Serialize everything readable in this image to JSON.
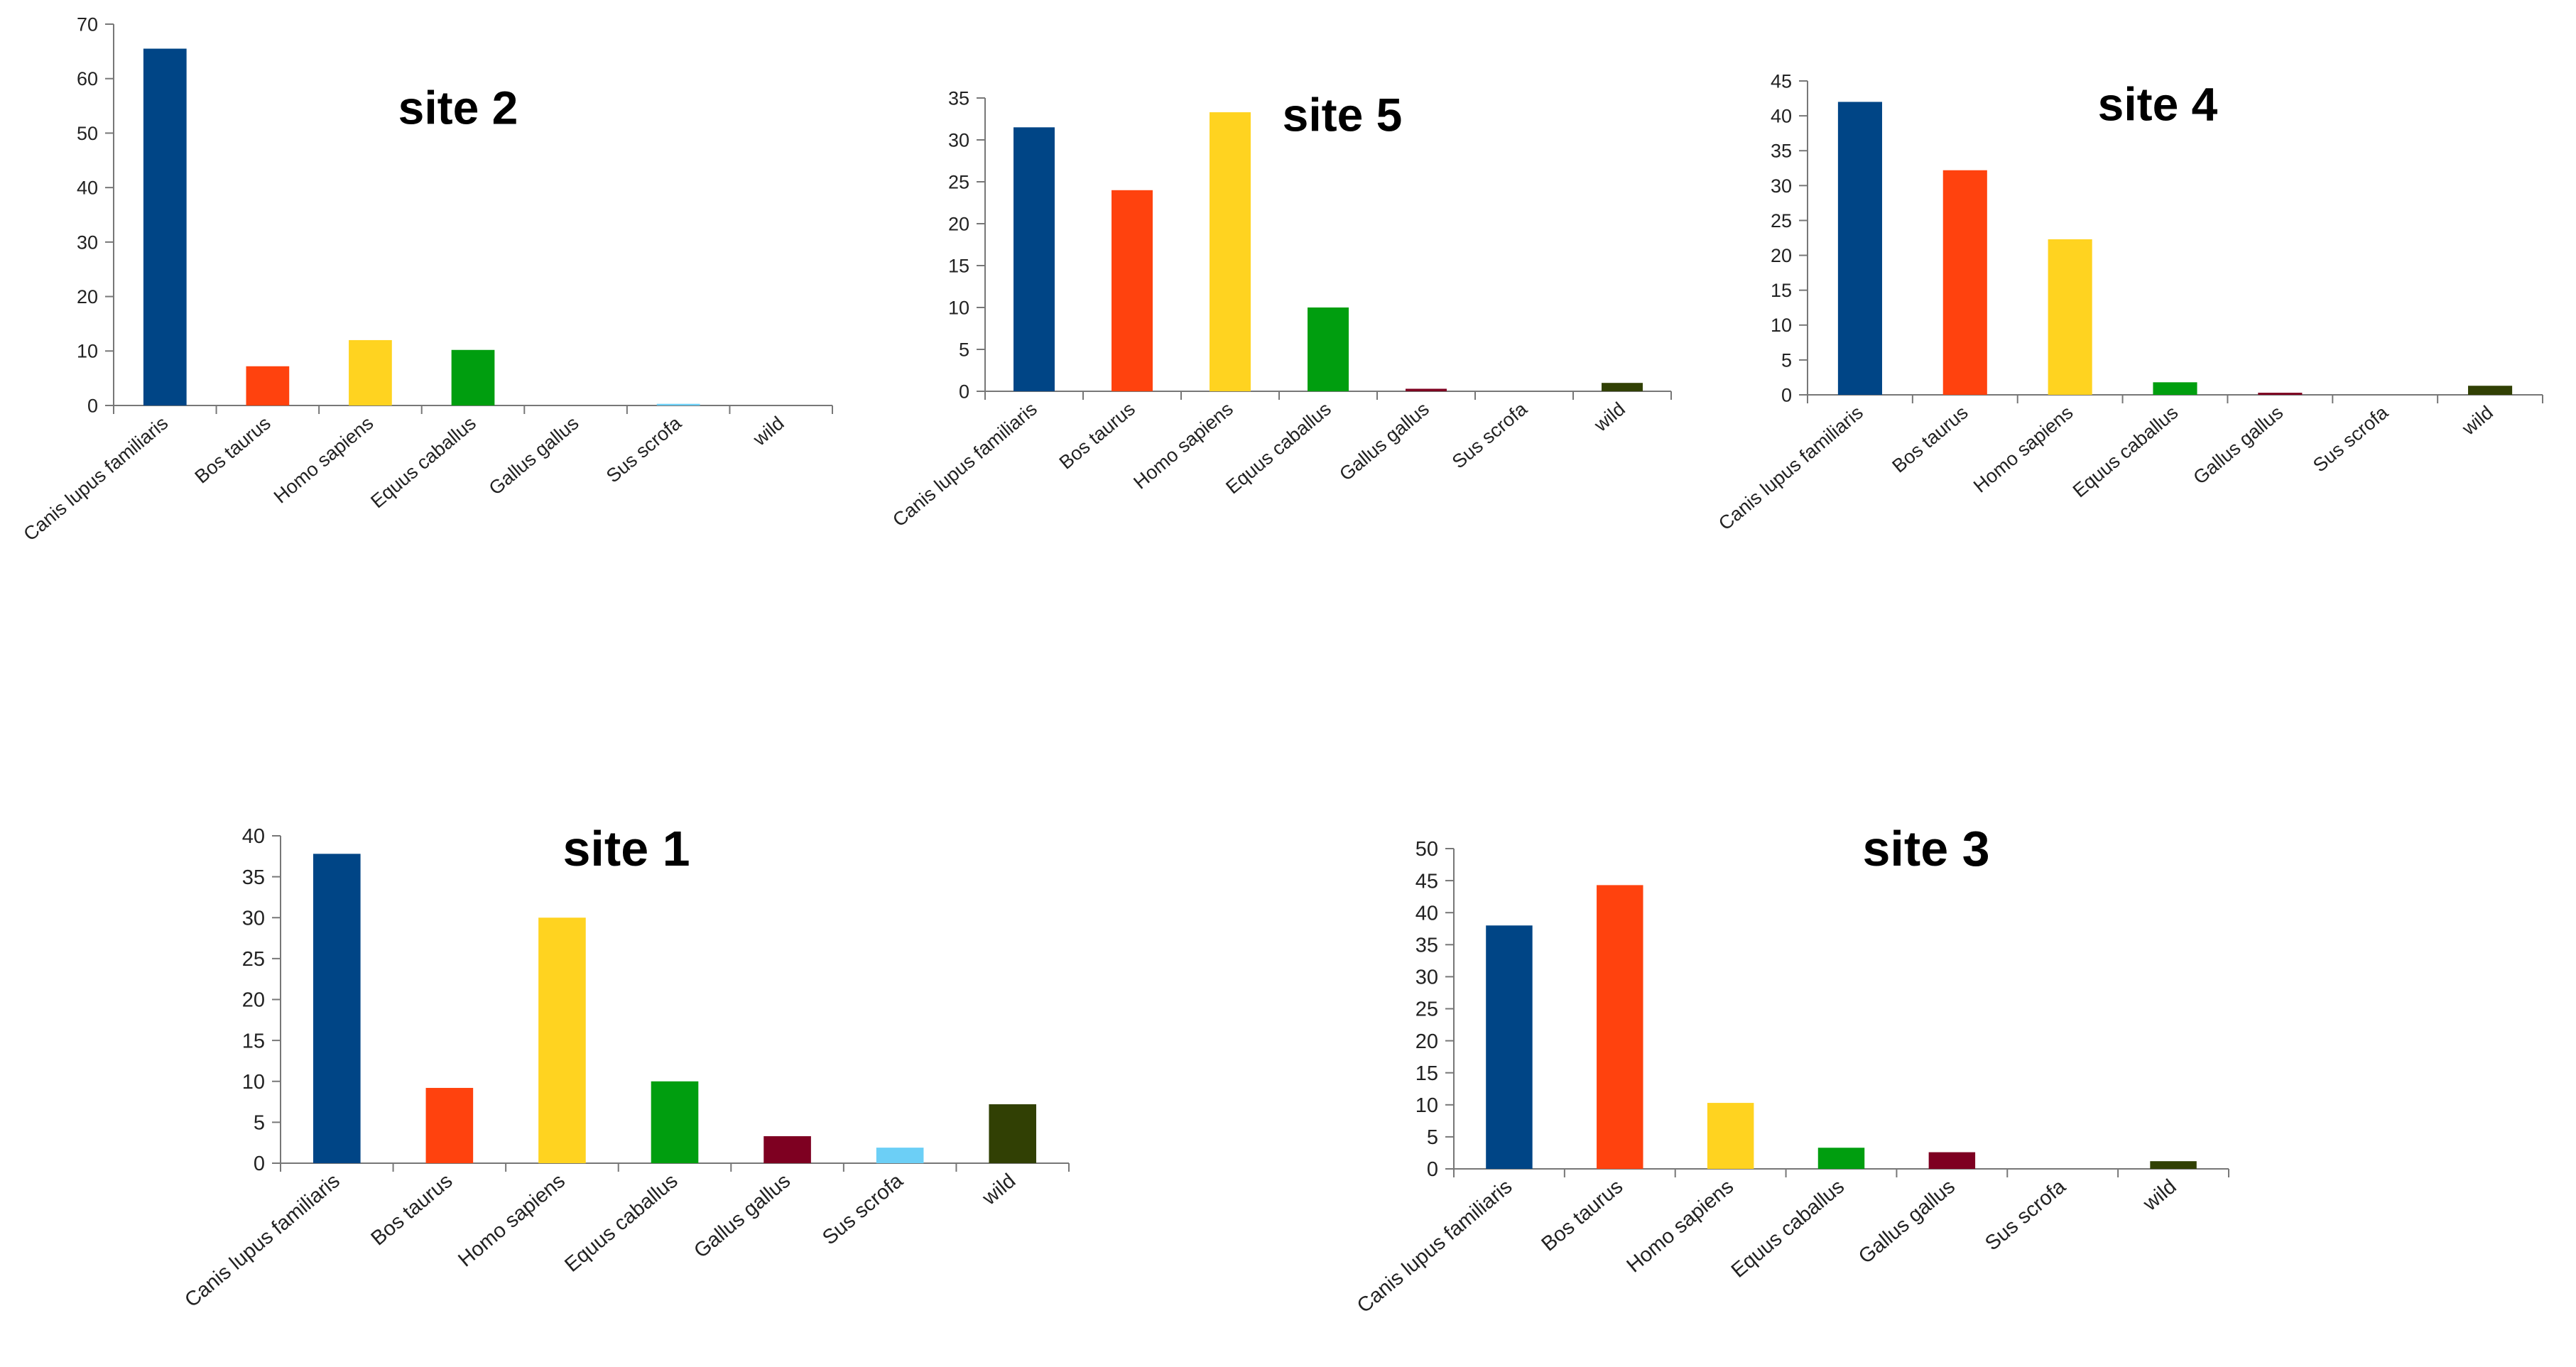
{
  "chart_data": [
    {
      "type": "bar",
      "title": "site 2",
      "categories": [
        "Canis lupus familiaris",
        "Bos taurus",
        "Homo sapiens",
        "Equus caballus",
        "Gallus gallus",
        "Sus scrofa",
        "wild"
      ],
      "values": [
        65.5,
        7.2,
        12,
        10.2,
        0,
        0.3,
        0
      ],
      "ylim": [
        0,
        70
      ],
      "yticks": [
        0,
        10,
        20,
        30,
        40,
        50,
        60,
        70
      ],
      "xlabel": "",
      "ylabel": "",
      "grid": false
    },
    {
      "type": "bar",
      "title": "site 5",
      "categories": [
        "Canis lupus familiaris",
        "Bos taurus",
        "Homo sapiens",
        "Equus caballus",
        "Gallus gallus",
        "Sus scrofa",
        "wild"
      ],
      "values": [
        31.5,
        24,
        33.3,
        10,
        0.3,
        0,
        1
      ],
      "ylim": [
        0,
        35
      ],
      "yticks": [
        0,
        5,
        10,
        15,
        20,
        25,
        30,
        35
      ],
      "xlabel": "",
      "ylabel": "",
      "grid": false
    },
    {
      "type": "bar",
      "title": "site 4",
      "categories": [
        "Canis lupus familiaris",
        "Bos taurus",
        "Homo sapiens",
        "Equus caballus",
        "Gallus gallus",
        "Sus scrofa",
        "wild"
      ],
      "values": [
        42,
        32.2,
        22.3,
        1.8,
        0.3,
        0,
        1.3
      ],
      "ylim": [
        0,
        45
      ],
      "yticks": [
        0,
        5,
        10,
        15,
        20,
        25,
        30,
        35,
        40,
        45
      ],
      "xlabel": "",
      "ylabel": "",
      "grid": false
    },
    {
      "type": "bar",
      "title": "site 1",
      "categories": [
        "Canis lupus familiaris",
        "Bos taurus",
        "Homo sapiens",
        "Equus caballus",
        "Gallus gallus",
        "Sus scrofa",
        "wild"
      ],
      "values": [
        37.8,
        9.2,
        30,
        10,
        3.3,
        1.9,
        7.2
      ],
      "ylim": [
        0,
        40
      ],
      "yticks": [
        0,
        5,
        10,
        15,
        20,
        25,
        30,
        35,
        40
      ],
      "xlabel": "",
      "ylabel": "",
      "grid": false
    },
    {
      "type": "bar",
      "title": "site 3",
      "categories": [
        "Canis lupus familiaris",
        "Bos taurus",
        "Homo sapiens",
        "Equus caballus",
        "Gallus gallus",
        "Sus scrofa",
        "wild"
      ],
      "values": [
        38,
        44.3,
        10.3,
        3.3,
        2.6,
        0,
        1.2
      ],
      "ylim": [
        0,
        50
      ],
      "yticks": [
        0,
        5,
        10,
        15,
        20,
        25,
        30,
        35,
        40,
        45,
        50
      ],
      "xlabel": "",
      "ylabel": "",
      "grid": false
    }
  ],
  "colors": {
    "Canis lupus familiaris": "#004586",
    "Bos taurus": "#ff420e",
    "Homo sapiens": "#ffd320",
    "Equus caballus": "#009e0f",
    "Gallus gallus": "#7e0021",
    "Sus scrofa": "#6ccff6",
    "wild": "#314004"
  }
}
